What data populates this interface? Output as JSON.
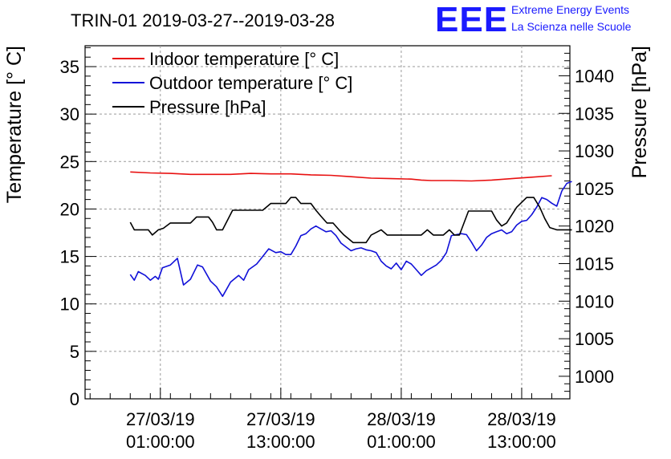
{
  "header": {
    "title": "TRIN-01 2019-03-27--2019-03-28",
    "logo_mark": "EEE",
    "logo_line1": "Extreme Energy Events",
    "logo_line2": "La Scienza nelle Scuole"
  },
  "colors": {
    "indoor": "#e81010",
    "outdoor": "#1010d8",
    "pressure": "#000000",
    "logo": "#1a1aff",
    "grid": "#9a9a9a"
  },
  "chart_data": {
    "type": "line",
    "x_unit": "hours since 2019-03-27 00:00",
    "ylabel": "Temperature [° C]",
    "y2label": "Pressure [hPa]",
    "ylim": [
      0,
      37.2
    ],
    "y2lim": [
      997,
      1044
    ],
    "yticks": [
      0,
      5,
      10,
      15,
      20,
      25,
      30,
      35
    ],
    "y2ticks": [
      1000,
      1005,
      1010,
      1015,
      1020,
      1025,
      1030,
      1035,
      1040
    ],
    "xlim": [
      -6.5,
      41.8
    ],
    "xticks": [
      {
        "x": 1,
        "line1": "27/03/19",
        "line2": "01:00:00"
      },
      {
        "x": 13,
        "line1": "27/03/19",
        "line2": "13:00:00"
      },
      {
        "x": 25,
        "line1": "28/03/19",
        "line2": "01:00:00"
      },
      {
        "x": 37,
        "line1": "28/03/19",
        "line2": "13:00:00"
      }
    ],
    "grid": true,
    "legend_position": "top-left",
    "series": [
      {
        "key": "indoor",
        "name": "Indoor temperature [° C]",
        "axis": "left",
        "points": [
          [
            -2,
            23.9
          ],
          [
            0,
            23.8
          ],
          [
            2,
            23.75
          ],
          [
            4,
            23.65
          ],
          [
            6,
            23.65
          ],
          [
            8,
            23.65
          ],
          [
            10,
            23.75
          ],
          [
            12,
            23.7
          ],
          [
            14,
            23.7
          ],
          [
            16,
            23.6
          ],
          [
            18,
            23.55
          ],
          [
            20,
            23.4
          ],
          [
            22,
            23.25
          ],
          [
            24,
            23.2
          ],
          [
            26,
            23.15
          ],
          [
            27,
            23.05
          ],
          [
            28,
            23.0
          ],
          [
            30,
            23.0
          ],
          [
            32,
            22.95
          ],
          [
            34,
            23.05
          ],
          [
            36,
            23.2
          ],
          [
            38,
            23.35
          ],
          [
            40,
            23.5
          ]
        ]
      },
      {
        "key": "outdoor",
        "name": "Outdoor temperature [° C]",
        "axis": "left",
        "points": [
          [
            -2,
            13.1
          ],
          [
            -1.6,
            12.5
          ],
          [
            -1.2,
            13.4
          ],
          [
            -0.5,
            13.0
          ],
          [
            0,
            12.5
          ],
          [
            0.5,
            12.9
          ],
          [
            0.8,
            12.6
          ],
          [
            1.2,
            13.8
          ],
          [
            2,
            14.1
          ],
          [
            2.7,
            14.8
          ],
          [
            3.3,
            12.0
          ],
          [
            4,
            12.6
          ],
          [
            4.7,
            14.1
          ],
          [
            5.2,
            13.9
          ],
          [
            6,
            12.4
          ],
          [
            6.6,
            11.8
          ],
          [
            7.2,
            10.8
          ],
          [
            8,
            12.3
          ],
          [
            8.8,
            13.0
          ],
          [
            9.3,
            12.5
          ],
          [
            9.8,
            13.6
          ],
          [
            10.6,
            14.2
          ],
          [
            11.2,
            15.0
          ],
          [
            11.8,
            15.8
          ],
          [
            12.5,
            15.4
          ],
          [
            13,
            15.5
          ],
          [
            13.5,
            15.2
          ],
          [
            14,
            15.2
          ],
          [
            14.5,
            16.1
          ],
          [
            15,
            17.2
          ],
          [
            15.5,
            17.4
          ],
          [
            16,
            17.9
          ],
          [
            16.5,
            18.2
          ],
          [
            17,
            17.9
          ],
          [
            17.5,
            17.6
          ],
          [
            18,
            17.7
          ],
          [
            18.5,
            17.2
          ],
          [
            19,
            16.4
          ],
          [
            19.5,
            16.0
          ],
          [
            20,
            15.6
          ],
          [
            20.5,
            15.8
          ],
          [
            21,
            15.9
          ],
          [
            21.5,
            15.7
          ],
          [
            22,
            15.6
          ],
          [
            22.5,
            15.4
          ],
          [
            23,
            14.5
          ],
          [
            23.5,
            14.0
          ],
          [
            24,
            13.7
          ],
          [
            24.5,
            14.3
          ],
          [
            25,
            13.6
          ],
          [
            25.5,
            14.5
          ],
          [
            26,
            14.2
          ],
          [
            26.5,
            13.6
          ],
          [
            27,
            13.0
          ],
          [
            27.5,
            13.5
          ],
          [
            28,
            13.8
          ],
          [
            28.5,
            14.1
          ],
          [
            29,
            14.6
          ],
          [
            29.5,
            15.4
          ],
          [
            30,
            17.2
          ],
          [
            31,
            17.4
          ],
          [
            31.5,
            17.3
          ],
          [
            32,
            16.5
          ],
          [
            32.5,
            15.6
          ],
          [
            33,
            16.2
          ],
          [
            33.5,
            17.0
          ],
          [
            34,
            17.4
          ],
          [
            34.5,
            17.6
          ],
          [
            35,
            17.8
          ],
          [
            35.5,
            17.4
          ],
          [
            36,
            17.6
          ],
          [
            36.5,
            18.3
          ],
          [
            37,
            18.7
          ],
          [
            37.5,
            18.8
          ],
          [
            38,
            19.4
          ],
          [
            38.5,
            20.2
          ],
          [
            39,
            21.2
          ],
          [
            39.5,
            21.0
          ],
          [
            40,
            20.6
          ],
          [
            40.5,
            20.3
          ],
          [
            41,
            21.9
          ],
          [
            41.5,
            22.7
          ],
          [
            42,
            22.9
          ]
        ]
      },
      {
        "key": "pressure",
        "name": "Pressure [hPa]",
        "axis": "right",
        "points": [
          [
            -2,
            1020.5
          ],
          [
            -1.6,
            1019.5
          ],
          [
            -0.2,
            1019.5
          ],
          [
            0.2,
            1018.8
          ],
          [
            0.8,
            1019.5
          ],
          [
            1.3,
            1019.7
          ],
          [
            2,
            1020.4
          ],
          [
            4,
            1020.4
          ],
          [
            4.6,
            1021.2
          ],
          [
            5.8,
            1021.2
          ],
          [
            6.2,
            1020.5
          ],
          [
            6.6,
            1019.5
          ],
          [
            7.2,
            1019.5
          ],
          [
            8.2,
            1022.1
          ],
          [
            11.2,
            1022.1
          ],
          [
            12,
            1023.0
          ],
          [
            13.5,
            1023.0
          ],
          [
            14,
            1023.8
          ],
          [
            14.5,
            1023.8
          ],
          [
            15,
            1023.0
          ],
          [
            16,
            1023.0
          ],
          [
            16.5,
            1022.1
          ],
          [
            17,
            1021.3
          ],
          [
            17.6,
            1020.4
          ],
          [
            18.2,
            1020.4
          ],
          [
            18.8,
            1019.5
          ],
          [
            19.3,
            1018.8
          ],
          [
            20.2,
            1017.8
          ],
          [
            21.5,
            1017.8
          ],
          [
            22,
            1018.8
          ],
          [
            23,
            1019.5
          ],
          [
            23.6,
            1018.8
          ],
          [
            24.3,
            1018.8
          ],
          [
            25,
            1018.8
          ],
          [
            26,
            1018.8
          ],
          [
            27,
            1018.8
          ],
          [
            27.6,
            1019.5
          ],
          [
            28.2,
            1018.8
          ],
          [
            29.2,
            1018.8
          ],
          [
            29.8,
            1019.5
          ],
          [
            30.3,
            1018.8
          ],
          [
            30.8,
            1018.8
          ],
          [
            31.7,
            1022.0
          ],
          [
            34,
            1022.0
          ],
          [
            34.5,
            1020.8
          ],
          [
            35,
            1020.0
          ],
          [
            35.5,
            1020.4
          ],
          [
            36.5,
            1022.5
          ],
          [
            37.5,
            1023.8
          ],
          [
            38.2,
            1023.8
          ],
          [
            38.8,
            1022.5
          ],
          [
            39.3,
            1021.0
          ],
          [
            39.8,
            1019.8
          ],
          [
            40.5,
            1019.5
          ],
          [
            42,
            1019.5
          ]
        ]
      }
    ]
  }
}
